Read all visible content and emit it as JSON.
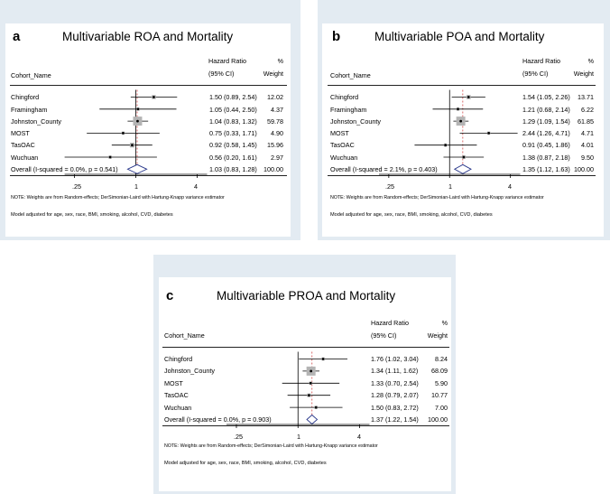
{
  "chart_data": [
    {
      "type": "forest",
      "letter": "a",
      "title": "Multivariable ROA and Mortality",
      "columns": {
        "study": "Cohort_Name",
        "hr_line1": "Hazard Ratio",
        "hr_line2": "(95% CI)",
        "w_line1": "%",
        "w_line2": "Weight"
      },
      "x_scale": "log",
      "xlim": [
        0.2,
        5
      ],
      "ticks": [
        {
          "value": 0.25,
          "label": ".25"
        },
        {
          "value": 1,
          "label": "1"
        },
        {
          "value": 4,
          "label": "4"
        }
      ],
      "rows": [
        {
          "label": "Chingford",
          "hr": 1.5,
          "lo": 0.89,
          "hi": 2.54,
          "ci_text": "1.50 (0.89, 2.54)",
          "weight": 12.02,
          "weight_text": "12.02"
        },
        {
          "label": "Framingham",
          "hr": 1.05,
          "lo": 0.44,
          "hi": 2.5,
          "ci_text": "1.05 (0.44, 2.50)",
          "weight": 4.37,
          "weight_text": "4.37"
        },
        {
          "label": "Johnston_County",
          "hr": 1.04,
          "lo": 0.83,
          "hi": 1.32,
          "ci_text": "1.04 (0.83, 1.32)",
          "weight": 59.78,
          "weight_text": "59.78"
        },
        {
          "label": "MOST",
          "hr": 0.75,
          "lo": 0.33,
          "hi": 1.71,
          "ci_text": "0.75 (0.33, 1.71)",
          "weight": 4.9,
          "weight_text": "4.90"
        },
        {
          "label": "TasOAC",
          "hr": 0.92,
          "lo": 0.58,
          "hi": 1.45,
          "ci_text": "0.92 (0.58, 1.45)",
          "weight": 15.96,
          "weight_text": "15.96"
        },
        {
          "label": "Wuchuan",
          "hr": 0.56,
          "lo": 0.2,
          "hi": 1.61,
          "ci_text": "0.56 (0.20, 1.61)",
          "weight": 2.97,
          "weight_text": "2.97"
        }
      ],
      "overall": {
        "label": "Overall (I-squared = 0.0%, p = 0.541)",
        "hr": 1.03,
        "lo": 0.83,
        "hi": 1.28,
        "ci_text": "1.03 (0.83, 1.28)",
        "weight_text": "100.00"
      },
      "note": "NOTE: Weights are from Random-effects; DerSimonian-Laird with Hartung-Knapp variance estimator",
      "model_note": "Model adjusted for age, sex, race, BMI, smoking, alcohol, CVD, diabetes"
    },
    {
      "type": "forest",
      "letter": "b",
      "title": "Multivariable POA and Mortality",
      "columns": {
        "study": "Cohort_Name",
        "hr_line1": "Hazard Ratio",
        "hr_line2": "(95% CI)",
        "w_line1": "%",
        "w_line2": "Weight"
      },
      "x_scale": "log",
      "xlim": [
        0.2,
        5
      ],
      "ticks": [
        {
          "value": 0.25,
          "label": ".25"
        },
        {
          "value": 1,
          "label": "1"
        },
        {
          "value": 4,
          "label": "4"
        }
      ],
      "rows": [
        {
          "label": "Chingford",
          "hr": 1.54,
          "lo": 1.05,
          "hi": 2.26,
          "ci_text": "1.54 (1.05, 2.26)",
          "weight": 13.71,
          "weight_text": "13.71"
        },
        {
          "label": "Framingham",
          "hr": 1.21,
          "lo": 0.68,
          "hi": 2.14,
          "ci_text": "1.21 (0.68, 2.14)",
          "weight": 6.22,
          "weight_text": "6.22"
        },
        {
          "label": "Johnston_County",
          "hr": 1.29,
          "lo": 1.09,
          "hi": 1.54,
          "ci_text": "1.29 (1.09, 1.54)",
          "weight": 61.85,
          "weight_text": "61.85"
        },
        {
          "label": "MOST",
          "hr": 2.44,
          "lo": 1.26,
          "hi": 4.71,
          "ci_text": "2.44 (1.26, 4.71)",
          "weight": 4.71,
          "weight_text": "4.71"
        },
        {
          "label": "TasOAC",
          "hr": 0.91,
          "lo": 0.45,
          "hi": 1.86,
          "ci_text": "0.91 (0.45, 1.86)",
          "weight": 4.01,
          "weight_text": "4.01"
        },
        {
          "label": "Wuchuan",
          "hr": 1.38,
          "lo": 0.87,
          "hi": 2.18,
          "ci_text": "1.38 (0.87, 2.18)",
          "weight": 9.5,
          "weight_text": "9.50"
        }
      ],
      "overall": {
        "label": "Overall (I-squared = 2.1%, p = 0.403)",
        "hr": 1.35,
        "lo": 1.12,
        "hi": 1.63,
        "ci_text": "1.35 (1.12, 1.63)",
        "weight_text": "100.00"
      },
      "note": "NOTE: Weights are from Random-effects; DerSimonian-Laird with Hartung-Knapp variance estimator",
      "model_note": "Model adjusted for age, sex, race, BMI, smoking, alcohol, CVD, diabetes"
    },
    {
      "type": "forest",
      "letter": "c",
      "title": "Multivariable PROA and Mortality",
      "columns": {
        "study": "Cohort_Name",
        "hr_line1": "Hazard Ratio",
        "hr_line2": "(95% CI)",
        "w_line1": "%",
        "w_line2": "Weight"
      },
      "x_scale": "log",
      "xlim": [
        0.2,
        5
      ],
      "ticks": [
        {
          "value": 0.25,
          "label": ".25"
        },
        {
          "value": 1,
          "label": "1"
        },
        {
          "value": 4,
          "label": "4"
        }
      ],
      "rows": [
        {
          "label": "Chingford",
          "hr": 1.76,
          "lo": 1.02,
          "hi": 3.04,
          "ci_text": "1.76 (1.02, 3.04)",
          "weight": 8.24,
          "weight_text": "8.24"
        },
        {
          "label": "Johnston_County",
          "hr": 1.34,
          "lo": 1.11,
          "hi": 1.62,
          "ci_text": "1.34 (1.11, 1.62)",
          "weight": 68.09,
          "weight_text": "68.09"
        },
        {
          "label": "MOST",
          "hr": 1.33,
          "lo": 0.7,
          "hi": 2.54,
          "ci_text": "1.33 (0.70, 2.54)",
          "weight": 5.9,
          "weight_text": "5.90"
        },
        {
          "label": "TasOAC",
          "hr": 1.28,
          "lo": 0.79,
          "hi": 2.07,
          "ci_text": "1.28 (0.79, 2.07)",
          "weight": 10.77,
          "weight_text": "10.77"
        },
        {
          "label": "Wuchuan",
          "hr": 1.5,
          "lo": 0.83,
          "hi": 2.72,
          "ci_text": "1.50 (0.83, 2.72)",
          "weight": 7.0,
          "weight_text": "7.00"
        }
      ],
      "overall": {
        "label": "Overall (I-squared = 0.0%, p = 0.903)",
        "hr": 1.37,
        "lo": 1.22,
        "hi": 1.54,
        "ci_text": "1.37 (1.22, 1.54)",
        "weight_text": "100.00"
      },
      "note": "NOTE: Weights are from Random-effects; DerSimonian-Laird with Hartung-Knapp variance estimator",
      "model_note": "Model adjusted for age, sex, race, BMI, smoking, alcohol, CVD, diabetes"
    }
  ]
}
